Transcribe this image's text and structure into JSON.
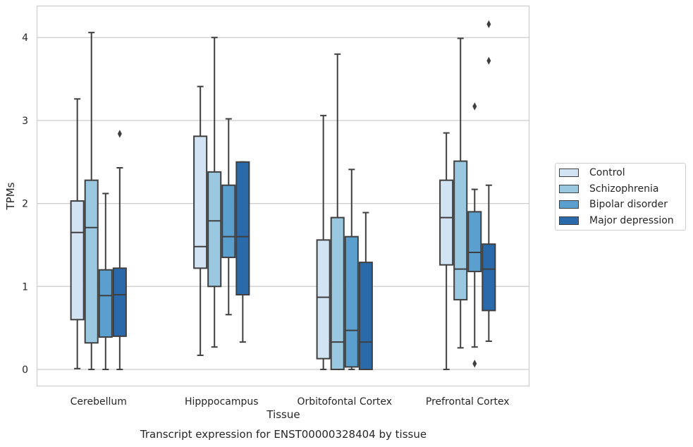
{
  "caption": "Transcript expression for ENST00000328404 by tissue",
  "chart_data": {
    "type": "box",
    "xlabel": "Tissue",
    "ylabel": "TPMs",
    "ylim": [
      -0.2,
      4.38
    ],
    "yticks": [
      0,
      1,
      2,
      3,
      4
    ],
    "grid": "horizontal",
    "legend_position": "right",
    "categories": [
      "Cerebellum",
      "Hipppocampus",
      "Orbitofontal Cortex",
      "Prefrontal Cortex"
    ],
    "series": [
      {
        "name": "Control",
        "color": "#d2e3f3",
        "boxes": [
          {
            "whislo": 0.01,
            "q1": 0.6,
            "med": 1.65,
            "q3": 2.03,
            "whishi": 3.26,
            "fliers": []
          },
          {
            "whislo": 0.17,
            "q1": 1.22,
            "med": 1.48,
            "q3": 2.81,
            "whishi": 3.41,
            "fliers": []
          },
          {
            "whislo": 0.0,
            "q1": 0.13,
            "med": 0.87,
            "q3": 1.56,
            "whishi": 3.06,
            "fliers": []
          },
          {
            "whislo": 0.0,
            "q1": 1.26,
            "med": 1.83,
            "q3": 2.28,
            "whishi": 2.85,
            "fliers": []
          }
        ]
      },
      {
        "name": "Schizophrenia",
        "color": "#9ac8e0",
        "boxes": [
          {
            "whislo": 0.0,
            "q1": 0.32,
            "med": 1.71,
            "q3": 2.28,
            "whishi": 4.06,
            "fliers": []
          },
          {
            "whislo": 0.27,
            "q1": 1.0,
            "med": 1.79,
            "q3": 2.38,
            "whishi": 4.0,
            "fliers": []
          },
          {
            "whislo": 0.0,
            "q1": 0.0,
            "med": 0.33,
            "q3": 1.83,
            "whishi": 3.8,
            "fliers": []
          },
          {
            "whislo": 0.26,
            "q1": 0.84,
            "med": 1.21,
            "q3": 2.51,
            "whishi": 3.99,
            "fliers": []
          }
        ]
      },
      {
        "name": "Bipolar disorder",
        "color": "#5a9fcd",
        "boxes": [
          {
            "whislo": 0.0,
            "q1": 0.39,
            "med": 0.89,
            "q3": 1.2,
            "whishi": 2.12,
            "fliers": []
          },
          {
            "whislo": 0.66,
            "q1": 1.35,
            "med": 1.6,
            "q3": 2.22,
            "whishi": 3.02,
            "fliers": []
          },
          {
            "whislo": 0.0,
            "q1": 0.03,
            "med": 0.47,
            "q3": 1.6,
            "whishi": 2.41,
            "fliers": []
          },
          {
            "whislo": 0.27,
            "q1": 1.18,
            "med": 1.41,
            "q3": 1.9,
            "whishi": 2.17,
            "fliers": [
              3.17,
              0.07
            ]
          }
        ]
      },
      {
        "name": "Major depression",
        "color": "#2a6aaa",
        "boxes": [
          {
            "whislo": 0.0,
            "q1": 0.4,
            "med": 0.9,
            "q3": 1.22,
            "whishi": 2.43,
            "fliers": [
              2.84
            ]
          },
          {
            "whislo": 0.33,
            "q1": 0.9,
            "med": 1.6,
            "q3": 2.5,
            "whishi": 2.5,
            "fliers": []
          },
          {
            "whislo": 0.0,
            "q1": 0.0,
            "med": 0.33,
            "q3": 1.29,
            "whishi": 1.89,
            "fliers": []
          },
          {
            "whislo": 0.34,
            "q1": 0.71,
            "med": 1.21,
            "q3": 1.51,
            "whishi": 2.22,
            "fliers": [
              4.16,
              3.72
            ]
          }
        ]
      }
    ]
  }
}
